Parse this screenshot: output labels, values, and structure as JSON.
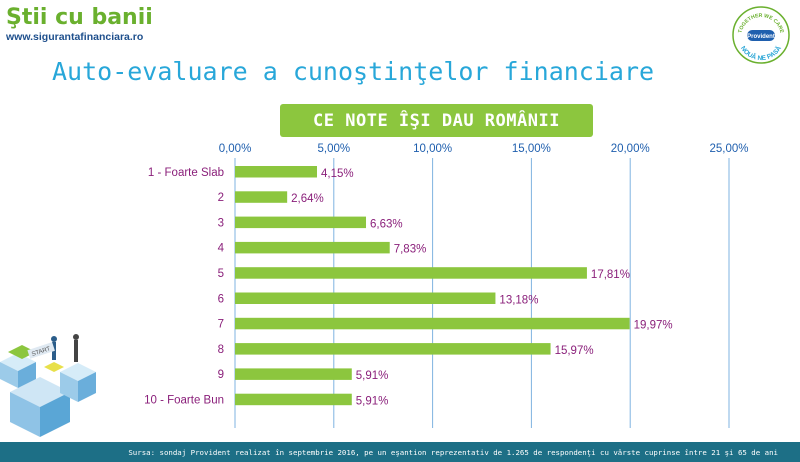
{
  "brand": {
    "name": "Ştii cu banii",
    "url": "www.sigurantafinanciara.ro"
  },
  "logo": {
    "name": "Provident",
    "top_text": "TOGETHER WE CARE",
    "bottom_text": "NOUĂ NE PASĂ",
    "colors": {
      "ring": "#6ab02e",
      "text": "#2ba6d6",
      "badge": "#1f5fae"
    }
  },
  "page_title": "Auto-evaluare a cunoştinţelor financiare",
  "footer": {
    "source": "Sursa: sondaj Provident realizat în septembrie 2016, pe un eşantion reprezentativ de 1.265 de respondenţi cu vârste cuprinse între 21 şi 65 de ani"
  },
  "illustration": {
    "icon": "isometric-blocks-illustration",
    "sign_text": "START"
  },
  "colors": {
    "bar": "#8cc63e",
    "grid": "#7fb3e0",
    "tick_text": "#1f5fae",
    "category_text": "#8a1f7a",
    "title": "#28a7d9",
    "footer_bg": "#1d6f86"
  },
  "chart_data": {
    "type": "bar",
    "orientation": "horizontal",
    "title": "CE NOTE ÎŞI DAU ROMÂNII",
    "categories": [
      "1 - Foarte Slab",
      "2",
      "3",
      "4",
      "5",
      "6",
      "7",
      "8",
      "9",
      "10 - Foarte Bun"
    ],
    "values": [
      4.15,
      2.64,
      6.63,
      7.83,
      17.81,
      13.18,
      19.97,
      15.97,
      5.91,
      5.91
    ],
    "data_labels": [
      "4,15%",
      "2,64%",
      "6,63%",
      "7,83%",
      "17,81%",
      "13,18%",
      "19,97%",
      "15,97%",
      "5,91%",
      "5,91%"
    ],
    "x_ticks": [
      0,
      5,
      10,
      15,
      20,
      25
    ],
    "x_tick_labels": [
      "0,00%",
      "5,00%",
      "10,00%",
      "15,00%",
      "20,00%",
      "25,00%"
    ],
    "xlim": [
      0,
      25
    ],
    "x_axis_position": "top",
    "grid": true,
    "legend": false
  }
}
